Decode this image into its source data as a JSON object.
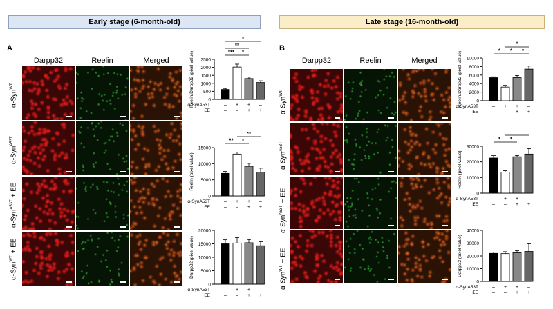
{
  "stages": {
    "early": "Early stage (6-month-old)",
    "late": "Late stage (16-month-old)"
  },
  "panels": {
    "A": {
      "letter": "A",
      "columns": [
        "Darpp32",
        "Reelin",
        "Merged"
      ],
      "rows": [
        {
          "base": "α-Syn",
          "sup": "WT",
          "suffix": ""
        },
        {
          "base": "α-Syn",
          "sup": "A53T",
          "suffix": ""
        },
        {
          "base": "α-Syn",
          "sup": "A53T",
          "suffix": " + EE"
        },
        {
          "base": "α-Syn",
          "sup": "WT",
          "suffix": " + EE"
        }
      ]
    },
    "B": {
      "letter": "B",
      "columns": [
        "Darpp32",
        "Reelin",
        "Merged"
      ],
      "rows": [
        {
          "base": "α-Syn",
          "sup": "WT",
          "suffix": ""
        },
        {
          "base": "α-Syn",
          "sup": "A53T",
          "suffix": ""
        },
        {
          "base": "α-Syn",
          "sup": "A53T",
          "suffix": " + EE"
        },
        {
          "base": "α-Syn",
          "sup": "WT",
          "suffix": " + EE"
        }
      ]
    }
  },
  "chart_data": [
    {
      "id": "A1",
      "type": "bar",
      "ylabel": "Reelin/Darpp32 (pixel value)",
      "ylim": [
        0,
        2500
      ],
      "yticks": [
        0,
        500,
        1000,
        1500,
        2000,
        2500
      ],
      "values": [
        620,
        2020,
        1300,
        1050
      ],
      "errors": [
        60,
        180,
        90,
        110
      ],
      "sig": [
        {
          "a": 0,
          "b": 1,
          "label": "***",
          "lvl": 0
        },
        {
          "a": 1,
          "b": 2,
          "label": "*",
          "lvl": 0
        },
        {
          "a": 0,
          "b": 2,
          "label": "**",
          "lvl": 1
        },
        {
          "a": 0,
          "b": 3,
          "label": "*",
          "lvl": 2
        }
      ],
      "row_labels": [
        "α-SynA53T",
        "EE"
      ],
      "row_values": [
        [
          "–",
          "+",
          "+",
          "–"
        ],
        [
          "–",
          "–",
          "+",
          "+"
        ]
      ]
    },
    {
      "id": "A2",
      "type": "bar",
      "ylabel": "Reelin (pixel value)",
      "ylim": [
        0,
        15000
      ],
      "yticks": [
        0,
        5000,
        10000,
        15000
      ],
      "values": [
        7000,
        13000,
        9200,
        7400
      ],
      "errors": [
        600,
        600,
        900,
        1200
      ],
      "sig": [
        {
          "a": 0,
          "b": 1,
          "label": "**",
          "lvl": 0
        },
        {
          "a": 1,
          "b": 2,
          "label": "*",
          "lvl": 0
        },
        {
          "a": 1,
          "b": 3,
          "label": "**",
          "lvl": 1
        }
      ],
      "row_labels": [
        "α-SynA53T",
        "EE"
      ],
      "row_values": [
        [
          "–",
          "+",
          "+",
          "–"
        ],
        [
          "–",
          "–",
          "+",
          "+"
        ]
      ]
    },
    {
      "id": "A3",
      "type": "bar",
      "ylabel": "Darpp32 (pixel value)",
      "ylim": [
        0,
        20000
      ],
      "yticks": [
        0,
        5000,
        10000,
        15000,
        20000
      ],
      "values": [
        15000,
        15300,
        15400,
        14300
      ],
      "errors": [
        1500,
        2000,
        1200,
        1500
      ],
      "sig": [],
      "row_labels": [
        "α-SynA53T",
        "EE"
      ],
      "row_values": [
        [
          "–",
          "+",
          "+",
          "–"
        ],
        [
          "–",
          "–",
          "+",
          "+"
        ]
      ]
    },
    {
      "id": "B1",
      "type": "bar",
      "ylabel": "Reelin/Darpp32 (pixel value)",
      "ylim": [
        0,
        10000
      ],
      "yticks": [
        0,
        2000,
        4000,
        6000,
        8000,
        10000
      ],
      "values": [
        5400,
        3200,
        5400,
        7400
      ],
      "errors": [
        200,
        400,
        500,
        700
      ],
      "sig": [
        {
          "a": 0,
          "b": 1,
          "label": "*",
          "lvl": 0
        },
        {
          "a": 1,
          "b": 2,
          "label": "*",
          "lvl": 0
        },
        {
          "a": 2,
          "b": 3,
          "label": "*",
          "lvl": 0
        },
        {
          "a": 1,
          "b": 3,
          "label": "*",
          "lvl": 1
        },
        {
          "a": 1,
          "b": 3,
          "label": "***",
          "lvl": 2
        }
      ],
      "row_labels": [
        "α-SynA53T",
        "EE"
      ],
      "row_values": [
        [
          "–",
          "+",
          "+",
          "–"
        ],
        [
          "–",
          "–",
          "+",
          "+"
        ]
      ]
    },
    {
      "id": "B2",
      "type": "bar",
      "ylabel": "Reelin (pixel value)",
      "ylim": [
        0,
        30000
      ],
      "yticks": [
        0,
        10000,
        20000,
        30000
      ],
      "values": [
        22500,
        13500,
        23300,
        25000
      ],
      "errors": [
        1500,
        800,
        800,
        3500
      ],
      "sig": [
        {
          "a": 0,
          "b": 1,
          "label": "*",
          "lvl": 0
        },
        {
          "a": 1,
          "b": 2,
          "label": "*",
          "lvl": 0
        },
        {
          "a": 1,
          "b": 3,
          "label": "**",
          "lvl": 1
        }
      ],
      "row_labels": [
        "α-SynA53T",
        "EE"
      ],
      "row_values": [
        [
          "–",
          "+",
          "+",
          "–"
        ],
        [
          "–",
          "–",
          "+",
          "+"
        ]
      ]
    },
    {
      "id": "B3",
      "type": "bar",
      "ylabel": "Darpp32 (pixel value)",
      "ylim": [
        0,
        40000
      ],
      "yticks": [
        0,
        10000,
        20000,
        30000,
        40000
      ],
      "values": [
        22000,
        21800,
        22500,
        23500
      ],
      "errors": [
        1000,
        1500,
        1500,
        6000
      ],
      "sig": [],
      "row_labels": [
        "α-SynA53T",
        "EE"
      ],
      "row_values": [
        [
          "–",
          "+",
          "+",
          "–"
        ],
        [
          "–",
          "–",
          "+",
          "+"
        ]
      ]
    }
  ],
  "colors": {
    "wt": "#000000",
    "a53t": "#ffffff",
    "a53t_ee": "#888888",
    "wt_ee": "#666666",
    "early_box": "#dde6f4",
    "late_box": "#fbedc8"
  }
}
